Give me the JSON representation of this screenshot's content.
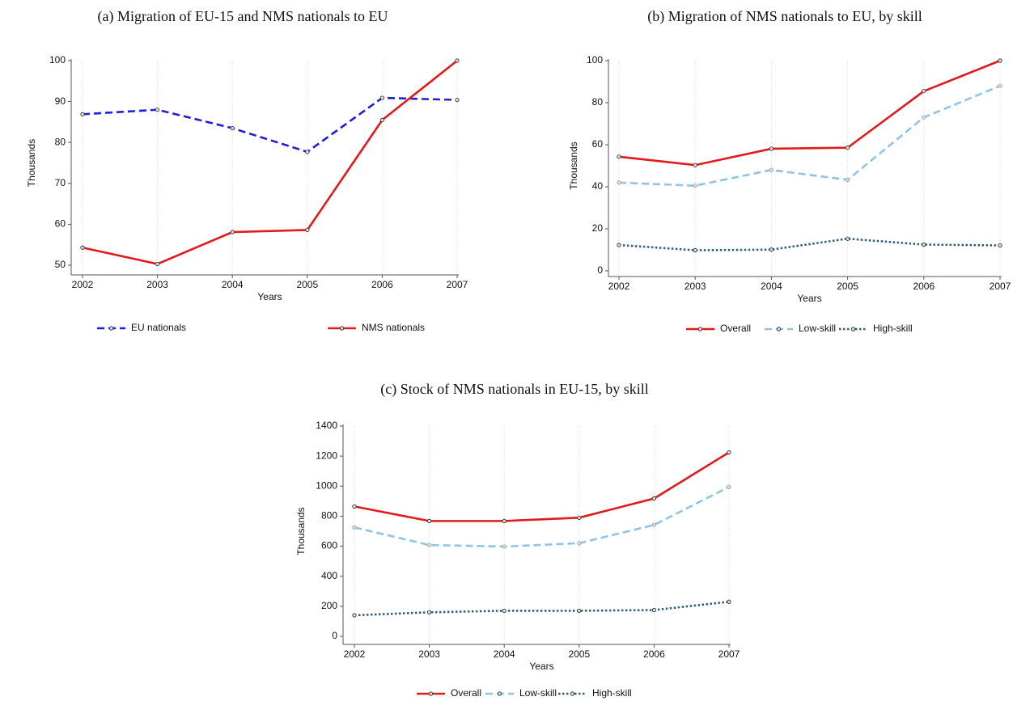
{
  "chart_data": [
    {
      "type": "line",
      "title": "(a) Migration of EU-15 and NMS nationals to EU",
      "xlabel": "Years",
      "ylabel": "Thousands",
      "x": [
        2002,
        2003,
        2004,
        2005,
        2006,
        2007
      ],
      "xlim": [
        2002,
        2007
      ],
      "xticks": [
        2002,
        2003,
        2004,
        2005,
        2006,
        2007
      ],
      "ylim": [
        50,
        100
      ],
      "yticks": [
        50,
        60,
        70,
        80,
        90,
        100
      ],
      "grid": true,
      "series": [
        {
          "name": "EU nationals",
          "color": "#1f1fd6",
          "line_style": "dashed",
          "values": [
            86.9,
            88,
            83.5,
            77.7,
            90.9,
            90.4
          ]
        },
        {
          "name": "NMS nationals",
          "color": "#e31a1c",
          "line_style": "solid",
          "values": [
            54.3,
            50.3,
            58.1,
            58.6,
            85.5,
            100
          ]
        }
      ]
    },
    {
      "type": "line",
      "title": "(b) Migration of NMS nationals to EU, by skill",
      "xlabel": "Years",
      "ylabel": "Thousands",
      "x": [
        2002,
        2003,
        2004,
        2005,
        2006,
        2007
      ],
      "xlim": [
        2002,
        2007
      ],
      "xticks": [
        2002,
        2003,
        2004,
        2005,
        2006,
        2007
      ],
      "ylim": [
        0,
        100
      ],
      "yticks": [
        0,
        20,
        40,
        60,
        80,
        100
      ],
      "grid": true,
      "series": [
        {
          "name": "Overall",
          "color": "#e31a1c",
          "line_style": "solid",
          "values": [
            54.3,
            50.3,
            58.1,
            58.6,
            85.5,
            100
          ]
        },
        {
          "name": "Low-skill",
          "color": "#8ec4e8",
          "line_style": "dashed",
          "values": [
            42,
            40.5,
            48,
            43.3,
            73,
            88
          ]
        },
        {
          "name": "High-skill",
          "color": "#2e5f80",
          "line_style": "dotted",
          "values": [
            12.3,
            9.8,
            10.1,
            15.3,
            12.5,
            12.1
          ]
        }
      ]
    },
    {
      "type": "line",
      "title": "(c) Stock of NMS nationals in EU-15, by skill",
      "xlabel": "Years",
      "ylabel": "Thousands",
      "x": [
        2002,
        2003,
        2004,
        2005,
        2006,
        2007
      ],
      "xlim": [
        2002,
        2007
      ],
      "xticks": [
        2002,
        2003,
        2004,
        2005,
        2006,
        2007
      ],
      "ylim": [
        0,
        1400
      ],
      "yticks": [
        0,
        200,
        400,
        600,
        800,
        1000,
        1200,
        1400
      ],
      "grid": true,
      "series": [
        {
          "name": "Overall",
          "color": "#e31a1c",
          "line_style": "solid",
          "values": [
            865,
            768,
            768,
            790,
            918,
            1225
          ]
        },
        {
          "name": "Low-skill",
          "color": "#8ec4e8",
          "line_style": "dashed",
          "values": [
            725,
            608,
            598,
            620,
            742,
            995
          ]
        },
        {
          "name": "High-skill",
          "color": "#2e5f80",
          "line_style": "dotted",
          "values": [
            140,
            160,
            170,
            170,
            175,
            230
          ]
        }
      ]
    }
  ]
}
